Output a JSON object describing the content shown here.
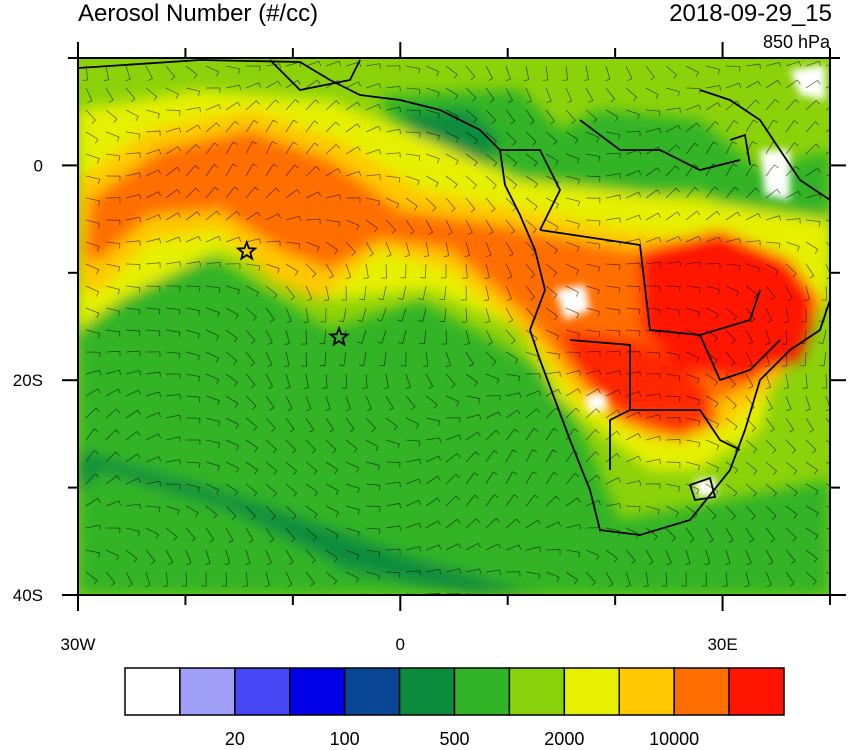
{
  "title_left": "Aerosol Number (#/cc)",
  "title_right": "2018-09-29_15",
  "level_label": "850 hPa",
  "axes": {
    "lon_range": [
      -30,
      40
    ],
    "lat_range": [
      -40,
      10
    ],
    "x_ticks": [
      {
        "value": -30,
        "label": "30W"
      },
      {
        "value": 0,
        "label": "0"
      },
      {
        "value": 30,
        "label": "30E"
      }
    ],
    "y_ticks": [
      {
        "value": 0,
        "label": "0"
      },
      {
        "value": -20,
        "label": "20S"
      },
      {
        "value": -40,
        "label": "40S"
      }
    ]
  },
  "colorbar": {
    "colors": [
      "#ffffff",
      "#a0a0f8",
      "#4646f5",
      "#0000e6",
      "#0a4696",
      "#0a8c3c",
      "#32b428",
      "#8cd20a",
      "#e6f000",
      "#ffc800",
      "#ff6e00",
      "#ff1400"
    ],
    "labels": [
      {
        "boundary": 2,
        "text": "20"
      },
      {
        "boundary": 4,
        "text": "100"
      },
      {
        "boundary": 6,
        "text": "500"
      },
      {
        "boundary": 8,
        "text": "2000"
      },
      {
        "boundary": 10,
        "text": "10000"
      }
    ]
  },
  "markers": [
    {
      "name": "star-marker-1",
      "lon": -14.3,
      "lat": -8.0
    },
    {
      "name": "star-marker-2",
      "lon": -5.7,
      "lat": -16.0
    }
  ]
}
